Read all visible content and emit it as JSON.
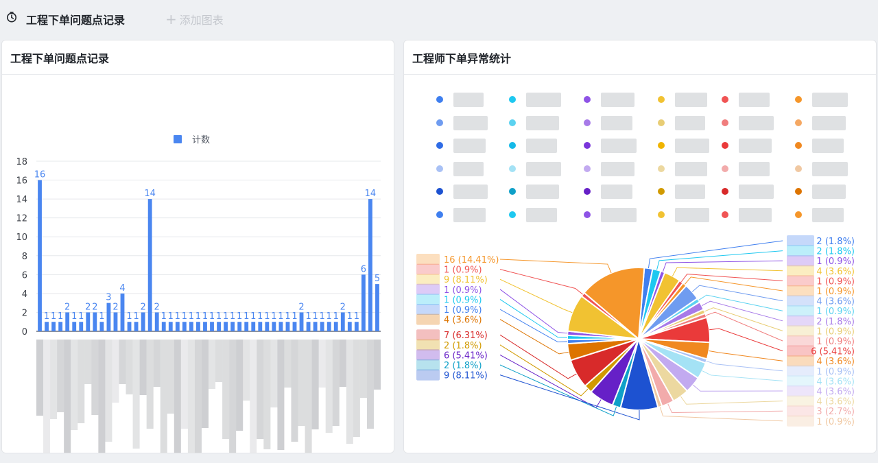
{
  "toolbar": {
    "dashboard_title": "工程下单问题点记录",
    "add_chart_label": "添加图表",
    "dashboard_icon": "timer-icon",
    "add_icon": "plus-icon"
  },
  "bar_card": {
    "title": "工程下单问题点记录"
  },
  "pie_card": {
    "title": "工程师下单异常统计"
  },
  "chart_data": [
    {
      "type": "bar",
      "legend": [
        "计数"
      ],
      "legend_placement": "top-center",
      "ylim": [
        0,
        18
      ],
      "yticks": [
        0,
        2,
        4,
        6,
        8,
        10,
        12,
        14,
        16,
        18
      ],
      "grid": true,
      "color": "#4a86f0",
      "values": [
        16,
        1,
        1,
        1,
        2,
        1,
        1,
        2,
        2,
        1,
        3,
        2,
        4,
        1,
        1,
        2,
        14,
        2,
        1,
        1,
        1,
        1,
        1,
        1,
        1,
        1,
        1,
        1,
        1,
        1,
        1,
        1,
        1,
        1,
        1,
        1,
        1,
        1,
        2,
        1,
        1,
        1,
        1,
        1,
        2,
        1,
        1,
        6,
        14,
        5
      ]
    },
    {
      "type": "pie",
      "legend_placement": "top",
      "legend_colors": [
        "#3f7fef",
        "#1ec8f0",
        "#8e53e6",
        "#f1c232",
        "#f05454",
        "#f5962a",
        "#6f9cf0",
        "#5bd2f0",
        "#a77ae8",
        "#e8cd75",
        "#f07d7d",
        "#f5a863",
        "#2f6ce6",
        "#14b9e8",
        "#7a35db",
        "#f0b400",
        "#ea3a3a",
        "#f08820",
        "#a9c1f5",
        "#a4e2f5",
        "#c2aaf0",
        "#ecd8a0",
        "#f2abab",
        "#f0c8a2",
        "#1d52d1",
        "#0fa0c8",
        "#6620c7",
        "#d19a00",
        "#d82a2a",
        "#dd7400",
        "#3f7fef",
        "#1ec8f0",
        "#8e53e6",
        "#f1c232",
        "#f05454",
        "#f5962a"
      ],
      "left_labels": [
        "16 (14.41%)",
        "1 (0.9%)",
        "9 (8.11%)",
        "1 (0.9%)",
        "1 (0.9%)",
        "1 (0.9%)",
        "4 (3.6%)",
        "7 (6.31%)",
        "2 (1.8%)",
        "6 (5.41%)",
        "2 (1.8%)",
        "9 (8.11%)"
      ],
      "right_labels": [
        "2 (1.8%)",
        "2 (1.8%)",
        "1 (0.9%)",
        "4 (3.6%)",
        "1 (0.9%)",
        "1 (0.9%)",
        "4 (3.6%)",
        "1 (0.9%)",
        "2 (1.8%)",
        "1 (0.9%)",
        "1 (0.9%)",
        "6 (5.41%)",
        "4 (3.6%)",
        "1 (0.9%)",
        "4 (3.6%)",
        "4 (3.6%)",
        "4 (3.6%)",
        "3 (2.7%)",
        "1 (0.9%)"
      ],
      "slices": [
        {
          "value": 2,
          "color": "#3f7fef"
        },
        {
          "value": 2,
          "color": "#1ec8f0"
        },
        {
          "value": 1,
          "color": "#8e53e6"
        },
        {
          "value": 4,
          "color": "#f1c232"
        },
        {
          "value": 1,
          "color": "#f05454"
        },
        {
          "value": 1,
          "color": "#f5962a"
        },
        {
          "value": 4,
          "color": "#6f9cf0"
        },
        {
          "value": 1,
          "color": "#5bd2f0"
        },
        {
          "value": 2,
          "color": "#a77ae8"
        },
        {
          "value": 1,
          "color": "#e8cd75"
        },
        {
          "value": 1,
          "color": "#f07d7d"
        },
        {
          "value": 6,
          "color": "#ea3a3a"
        },
        {
          "value": 4,
          "color": "#f08820"
        },
        {
          "value": 1,
          "color": "#a9c1f5"
        },
        {
          "value": 4,
          "color": "#a4e2f5"
        },
        {
          "value": 4,
          "color": "#c2aaf0"
        },
        {
          "value": 4,
          "color": "#ecd8a0"
        },
        {
          "value": 3,
          "color": "#f2abab"
        },
        {
          "value": 1,
          "color": "#f0c8a2"
        },
        {
          "value": 9,
          "color": "#1d52d1"
        },
        {
          "value": 2,
          "color": "#0fa0c8"
        },
        {
          "value": 6,
          "color": "#6620c7"
        },
        {
          "value": 2,
          "color": "#d19a00"
        },
        {
          "value": 7,
          "color": "#d82a2a"
        },
        {
          "value": 4,
          "color": "#dd7400"
        },
        {
          "value": 1,
          "color": "#3f7fef"
        },
        {
          "value": 1,
          "color": "#1ec8f0"
        },
        {
          "value": 1,
          "color": "#8e53e6"
        },
        {
          "value": 9,
          "color": "#f1c232"
        },
        {
          "value": 1,
          "color": "#f05454"
        },
        {
          "value": 16,
          "color": "#f5962a"
        }
      ]
    }
  ]
}
